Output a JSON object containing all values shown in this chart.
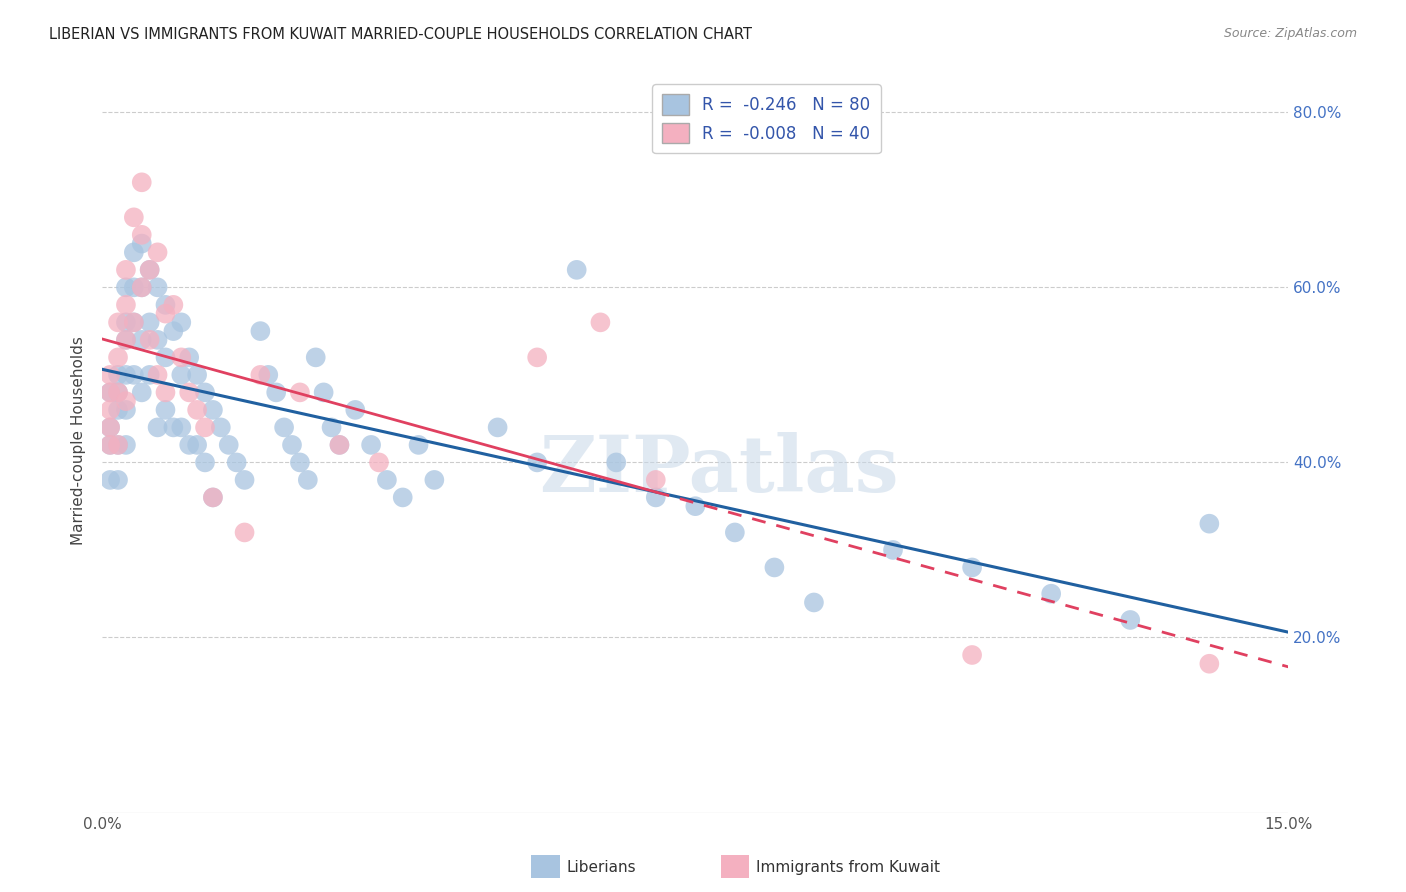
{
  "title": "LIBERIAN VS IMMIGRANTS FROM KUWAIT MARRIED-COUPLE HOUSEHOLDS CORRELATION CHART",
  "source": "Source: ZipAtlas.com",
  "ylabel": "Married-couple Households",
  "xmin": 0.0,
  "xmax": 0.15,
  "ymin": 0.0,
  "ymax": 0.85,
  "yticks": [
    0.2,
    0.4,
    0.6,
    0.8
  ],
  "ytick_labels_right": [
    "20.0%",
    "40.0%",
    "60.0%",
    "80.0%"
  ],
  "blue_color": "#a8c4e0",
  "pink_color": "#f4b0c0",
  "blue_line_color": "#2060a0",
  "pink_line_color": "#e04060",
  "legend_blue_label": "R =  -0.246   N = 80",
  "legend_pink_label": "R =  -0.008   N = 40",
  "watermark": "ZIPatlas",
  "blue_x": [
    0.001,
    0.001,
    0.001,
    0.001,
    0.002,
    0.002,
    0.002,
    0.002,
    0.002,
    0.003,
    0.003,
    0.003,
    0.003,
    0.003,
    0.003,
    0.004,
    0.004,
    0.004,
    0.004,
    0.005,
    0.005,
    0.005,
    0.005,
    0.006,
    0.006,
    0.006,
    0.007,
    0.007,
    0.007,
    0.008,
    0.008,
    0.008,
    0.009,
    0.009,
    0.01,
    0.01,
    0.01,
    0.011,
    0.011,
    0.012,
    0.012,
    0.013,
    0.013,
    0.014,
    0.014,
    0.015,
    0.016,
    0.017,
    0.018,
    0.02,
    0.021,
    0.022,
    0.023,
    0.024,
    0.025,
    0.026,
    0.027,
    0.028,
    0.029,
    0.03,
    0.032,
    0.034,
    0.036,
    0.038,
    0.04,
    0.042,
    0.05,
    0.055,
    0.06,
    0.065,
    0.07,
    0.075,
    0.08,
    0.085,
    0.09,
    0.1,
    0.11,
    0.12,
    0.13,
    0.14
  ],
  "blue_y": [
    0.48,
    0.44,
    0.42,
    0.38,
    0.5,
    0.48,
    0.46,
    0.42,
    0.38,
    0.6,
    0.56,
    0.54,
    0.5,
    0.46,
    0.42,
    0.64,
    0.6,
    0.56,
    0.5,
    0.65,
    0.6,
    0.54,
    0.48,
    0.62,
    0.56,
    0.5,
    0.6,
    0.54,
    0.44,
    0.58,
    0.52,
    0.46,
    0.55,
    0.44,
    0.56,
    0.5,
    0.44,
    0.52,
    0.42,
    0.5,
    0.42,
    0.48,
    0.4,
    0.46,
    0.36,
    0.44,
    0.42,
    0.4,
    0.38,
    0.55,
    0.5,
    0.48,
    0.44,
    0.42,
    0.4,
    0.38,
    0.52,
    0.48,
    0.44,
    0.42,
    0.46,
    0.42,
    0.38,
    0.36,
    0.42,
    0.38,
    0.44,
    0.4,
    0.62,
    0.4,
    0.36,
    0.35,
    0.32,
    0.28,
    0.24,
    0.3,
    0.28,
    0.25,
    0.22,
    0.33
  ],
  "pink_x": [
    0.001,
    0.001,
    0.001,
    0.001,
    0.001,
    0.002,
    0.002,
    0.002,
    0.002,
    0.003,
    0.003,
    0.003,
    0.003,
    0.004,
    0.004,
    0.005,
    0.005,
    0.005,
    0.006,
    0.006,
    0.007,
    0.007,
    0.008,
    0.008,
    0.009,
    0.01,
    0.011,
    0.012,
    0.013,
    0.014,
    0.018,
    0.02,
    0.025,
    0.03,
    0.035,
    0.055,
    0.063,
    0.07,
    0.11,
    0.14
  ],
  "pink_y": [
    0.5,
    0.48,
    0.46,
    0.44,
    0.42,
    0.56,
    0.52,
    0.48,
    0.42,
    0.62,
    0.58,
    0.54,
    0.47,
    0.68,
    0.56,
    0.72,
    0.66,
    0.6,
    0.62,
    0.54,
    0.64,
    0.5,
    0.57,
    0.48,
    0.58,
    0.52,
    0.48,
    0.46,
    0.44,
    0.36,
    0.32,
    0.5,
    0.48,
    0.42,
    0.4,
    0.52,
    0.56,
    0.38,
    0.18,
    0.17
  ]
}
